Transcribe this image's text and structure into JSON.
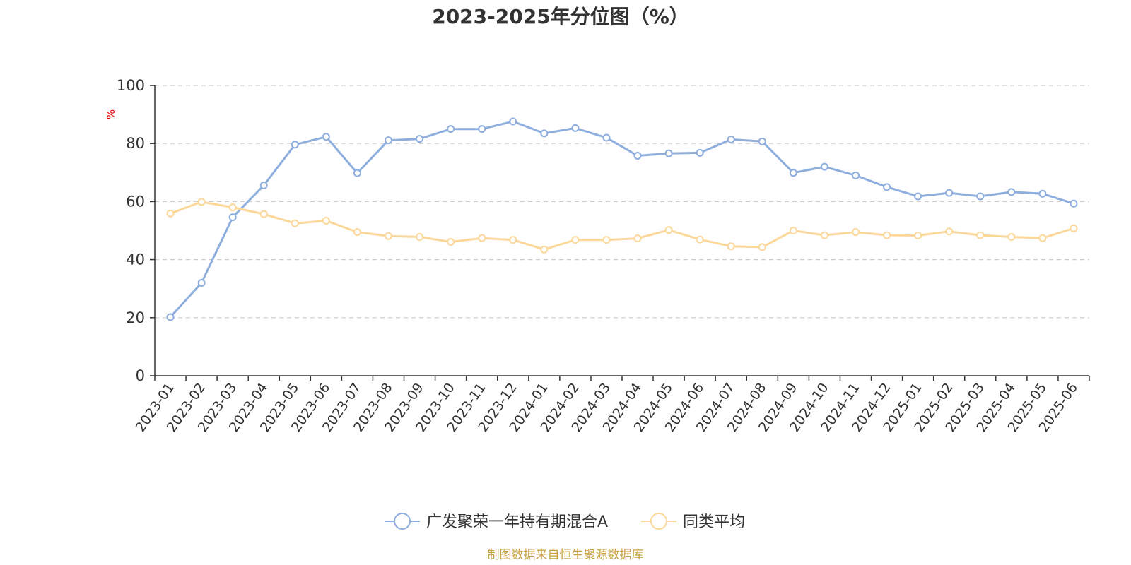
{
  "colors": {
    "series_a": "#8eaede",
    "series_b": "#fbd89a",
    "grid": "#cccccc",
    "axis": "#333333",
    "text": "#333333",
    "unit": "#e00000",
    "source": "#c8a040"
  },
  "source_text": "制图数据来自恒生聚源数据库",
  "chart_data": {
    "type": "line",
    "title": "2023-2025年分位图（%）",
    "ylabel": "%",
    "xlabel": "",
    "ylim": [
      0,
      100
    ],
    "yticks": [
      0,
      20,
      40,
      60,
      80,
      100
    ],
    "grid": true,
    "legend_position": "bottom-center",
    "categories": [
      "2023-01",
      "2023-02",
      "2023-03",
      "2023-04",
      "2023-05",
      "2023-06",
      "2023-07",
      "2023-08",
      "2023-09",
      "2023-10",
      "2023-11",
      "2023-12",
      "2024-01",
      "2024-02",
      "2024-03",
      "2024-04",
      "2024-05",
      "2024-06",
      "2024-07",
      "2024-08",
      "2024-09",
      "2024-10",
      "2024-11",
      "2024-12",
      "2025-01",
      "2025-02",
      "2025-03",
      "2025-04",
      "2025-05",
      "2025-06"
    ],
    "series": [
      {
        "name": "广发聚荣一年持有期混合A",
        "color_key": "series_a",
        "values": [
          20.2,
          32.0,
          54.6,
          65.6,
          79.6,
          82.3,
          69.8,
          81.1,
          81.6,
          85.0,
          85.0,
          87.6,
          83.5,
          85.3,
          82.0,
          75.8,
          76.6,
          76.8,
          81.4,
          80.7,
          69.9,
          72.0,
          69.0,
          65.0,
          61.8,
          63.0,
          61.8,
          63.3,
          62.7,
          59.3
        ]
      },
      {
        "name": "同类平均",
        "color_key": "series_b",
        "values": [
          55.9,
          59.9,
          58.0,
          55.7,
          52.5,
          53.4,
          49.5,
          48.1,
          47.8,
          46.1,
          47.4,
          46.8,
          43.5,
          46.8,
          46.8,
          47.3,
          50.2,
          46.9,
          44.6,
          44.3,
          50.0,
          48.4,
          49.5,
          48.4,
          48.3,
          49.7,
          48.4,
          47.8,
          47.4,
          50.8
        ]
      }
    ]
  }
}
